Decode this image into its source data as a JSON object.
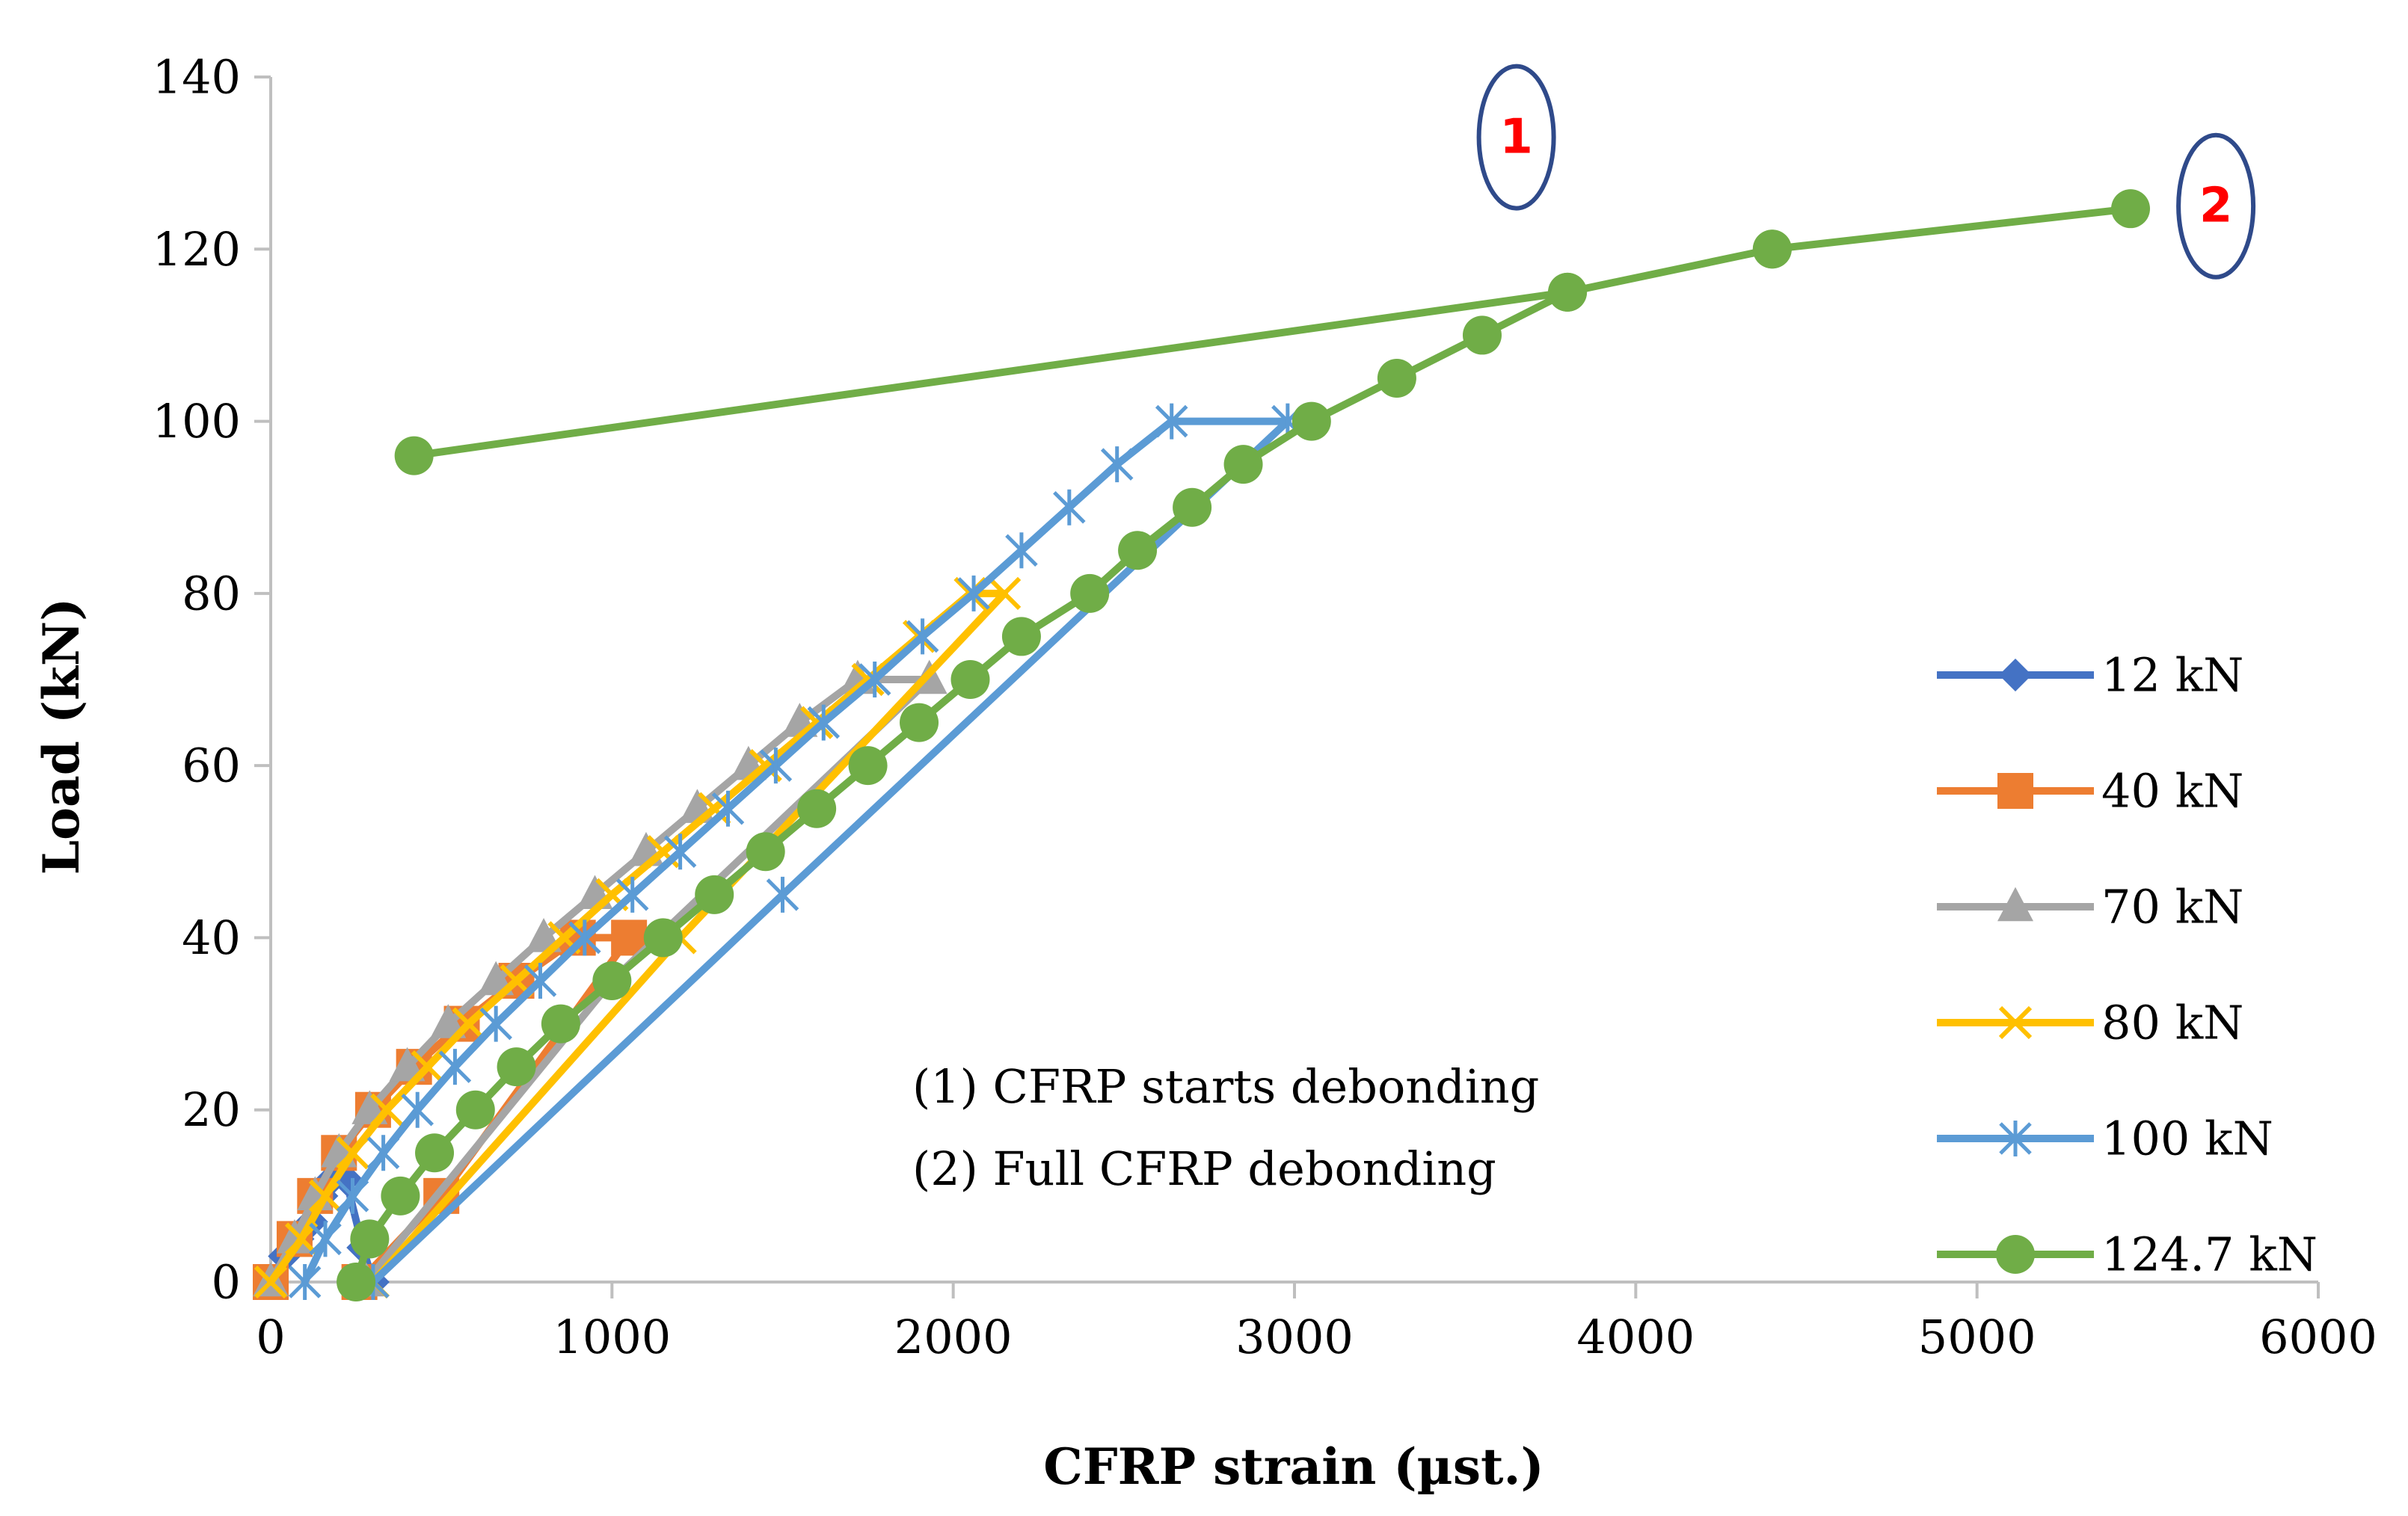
{
  "chart_data": {
    "type": "line",
    "title": "",
    "xlabel": "CFRP strain (µst.)",
    "ylabel": "Load  (kN)",
    "xlim": [
      0,
      6000
    ],
    "ylim": [
      0,
      140
    ],
    "x_ticks": [
      "0",
      "1000",
      "2000",
      "3000",
      "4000",
      "5000",
      "6000"
    ],
    "y_ticks": [
      "0",
      "20",
      "40",
      "60",
      "80",
      "100",
      "120",
      "140"
    ],
    "legend_position": "right",
    "series": [
      {
        "name": "12 kN",
        "color": "#4472C4",
        "marker": "diamond",
        "points": [
          [
            0,
            0
          ],
          [
            40,
            3
          ],
          [
            80,
            5
          ],
          [
            120,
            7
          ],
          [
            150,
            10
          ],
          [
            180,
            12
          ],
          [
            220,
            12
          ],
          [
            270,
            4
          ],
          [
            300,
            0
          ]
        ]
      },
      {
        "name": "40 kN",
        "color": "#ED7D31",
        "marker": "square",
        "points": [
          [
            0,
            0
          ],
          [
            70,
            5
          ],
          [
            130,
            10
          ],
          [
            200,
            15
          ],
          [
            300,
            20
          ],
          [
            420,
            25
          ],
          [
            560,
            30
          ],
          [
            720,
            35
          ],
          [
            900,
            40
          ],
          [
            1050,
            40
          ],
          [
            500,
            10
          ],
          [
            260,
            0
          ]
        ]
      },
      {
        "name": "70 kN",
        "color": "#A5A5A5",
        "marker": "triangle",
        "points": [
          [
            0,
            0
          ],
          [
            70,
            5
          ],
          [
            130,
            10
          ],
          [
            200,
            15
          ],
          [
            290,
            20
          ],
          [
            400,
            25
          ],
          [
            520,
            30
          ],
          [
            660,
            35
          ],
          [
            800,
            40
          ],
          [
            950,
            45
          ],
          [
            1100,
            50
          ],
          [
            1250,
            55
          ],
          [
            1400,
            60
          ],
          [
            1550,
            65
          ],
          [
            1720,
            70
          ],
          [
            1930,
            70
          ],
          [
            1000,
            35
          ],
          [
            280,
            0
          ]
        ]
      },
      {
        "name": "80 kN",
        "color": "#FFC000",
        "marker": "x",
        "points": [
          [
            0,
            0
          ],
          [
            90,
            5
          ],
          [
            160,
            10
          ],
          [
            240,
            15
          ],
          [
            340,
            20
          ],
          [
            460,
            25
          ],
          [
            580,
            30
          ],
          [
            720,
            35
          ],
          [
            860,
            40
          ],
          [
            1000,
            45
          ],
          [
            1150,
            50
          ],
          [
            1300,
            55
          ],
          [
            1450,
            60
          ],
          [
            1600,
            65
          ],
          [
            1750,
            70
          ],
          [
            1900,
            75
          ],
          [
            2050,
            80
          ],
          [
            2150,
            80
          ],
          [
            1200,
            40
          ],
          [
            300,
            0
          ]
        ]
      },
      {
        "name": "100 kN",
        "color": "#5B9BD5",
        "marker": "star",
        "points": [
          [
            100,
            0
          ],
          [
            160,
            5
          ],
          [
            240,
            10
          ],
          [
            330,
            15
          ],
          [
            430,
            20
          ],
          [
            540,
            25
          ],
          [
            660,
            30
          ],
          [
            790,
            35
          ],
          [
            920,
            40
          ],
          [
            1060,
            45
          ],
          [
            1200,
            50
          ],
          [
            1340,
            55
          ],
          [
            1480,
            60
          ],
          [
            1620,
            65
          ],
          [
            1770,
            70
          ],
          [
            1910,
            75
          ],
          [
            2060,
            80
          ],
          [
            2200,
            85
          ],
          [
            2340,
            90
          ],
          [
            2480,
            95
          ],
          [
            2640,
            100
          ],
          [
            2980,
            100
          ],
          [
            1500,
            45
          ],
          [
            300,
            0
          ]
        ]
      },
      {
        "name": "124.7 kN",
        "color": "#70AD47",
        "marker": "circle",
        "points": [
          [
            250,
            0
          ],
          [
            290,
            5
          ],
          [
            380,
            10
          ],
          [
            480,
            15
          ],
          [
            600,
            20
          ],
          [
            720,
            25
          ],
          [
            850,
            30
          ],
          [
            1000,
            35
          ],
          [
            1150,
            40
          ],
          [
            1300,
            45
          ],
          [
            1450,
            50
          ],
          [
            1600,
            55
          ],
          [
            1750,
            60
          ],
          [
            1900,
            65
          ],
          [
            2050,
            70
          ],
          [
            2200,
            75
          ],
          [
            2400,
            80
          ],
          [
            2540,
            85
          ],
          [
            2700,
            90
          ],
          [
            2850,
            95
          ],
          [
            3050,
            100
          ],
          [
            3300,
            105
          ],
          [
            3550,
            110
          ],
          [
            3800,
            115
          ],
          [
            4400,
            120
          ],
          [
            5450,
            124.7
          ],
          [
            4400,
            120
          ],
          [
            3800,
            115
          ],
          [
            420,
            96
          ]
        ]
      }
    ],
    "annotations": {
      "markers": [
        {
          "label": "1",
          "x": 3650,
          "y": 133
        },
        {
          "label": "2",
          "x": 5700,
          "y": 125
        }
      ],
      "notes": [
        "(1) CFRP starts debonding",
        "(2) Full CFRP debonding"
      ]
    }
  },
  "colors": {
    "axis": "#BFBFBF",
    "marker_ellipse": "#2F4A8A",
    "marker_text": "#FF0000"
  }
}
